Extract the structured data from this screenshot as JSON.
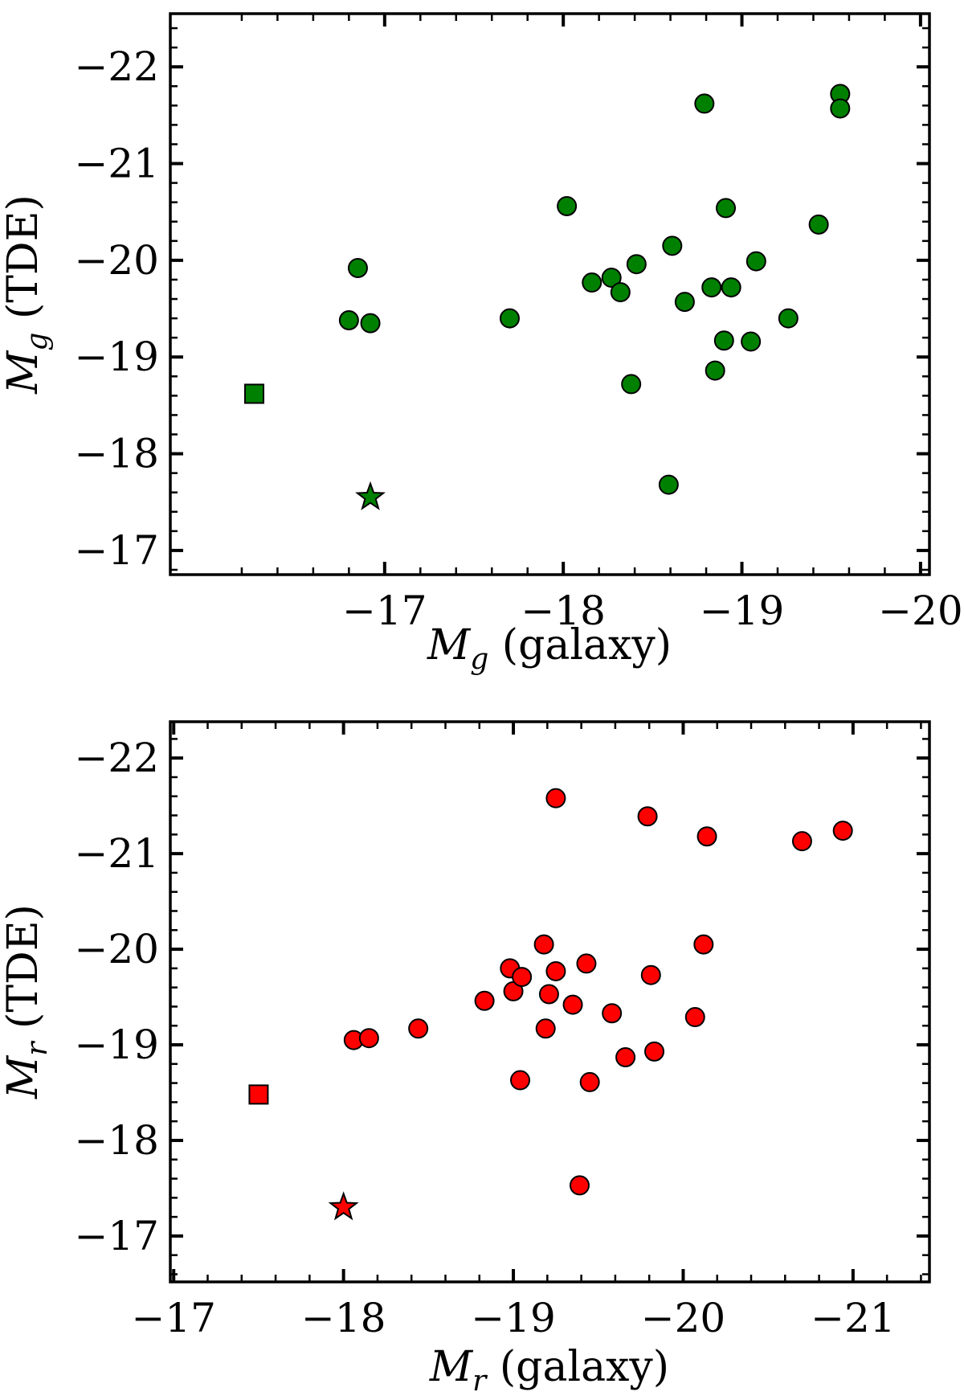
{
  "chart_data": [
    {
      "type": "scatter",
      "id": "top",
      "title": "",
      "xlabel_var": "M",
      "xlabel_sub": "g",
      "xlabel_rest": " (galaxy)",
      "ylabel_var": "M",
      "ylabel_sub": "g",
      "ylabel_rest": " (TDE)",
      "xlim": [
        -15.8,
        -20.05
      ],
      "ylim": [
        -16.75,
        -22.55
      ],
      "xticks": [
        -17,
        -18,
        -19,
        -20
      ],
      "xtick_labels": [
        "−17",
        "−18",
        "−19",
        "−20"
      ],
      "yticks": [
        -17,
        -18,
        -19,
        -20,
        -21,
        -22
      ],
      "ytick_labels": [
        "−17",
        "−18",
        "−19",
        "−20",
        "−21",
        "−22"
      ],
      "color": "#008000",
      "series": [
        {
          "name": "circles",
          "marker": "circle",
          "points": [
            [
              -16.8,
              -19.38
            ],
            [
              -16.92,
              -19.35
            ],
            [
              -16.85,
              -19.92
            ],
            [
              -17.7,
              -19.4
            ],
            [
              -18.02,
              -20.56
            ],
            [
              -18.16,
              -19.77
            ],
            [
              -18.27,
              -19.82
            ],
            [
              -18.32,
              -19.67
            ],
            [
              -18.38,
              -18.72
            ],
            [
              -18.41,
              -19.96
            ],
            [
              -18.59,
              -17.68
            ],
            [
              -18.61,
              -20.15
            ],
            [
              -18.68,
              -19.57
            ],
            [
              -18.79,
              -21.62
            ],
            [
              -18.83,
              -19.72
            ],
            [
              -18.85,
              -18.86
            ],
            [
              -18.9,
              -19.17
            ],
            [
              -18.91,
              -20.54
            ],
            [
              -18.94,
              -19.72
            ],
            [
              -19.05,
              -19.16
            ],
            [
              -19.08,
              -19.99
            ],
            [
              -19.26,
              -19.4
            ],
            [
              -19.43,
              -20.37
            ],
            [
              -19.55,
              -21.72
            ],
            [
              -19.55,
              -21.57
            ]
          ]
        },
        {
          "name": "square",
          "marker": "square",
          "points": [
            [
              -16.27,
              -18.62
            ]
          ]
        },
        {
          "name": "star",
          "marker": "star",
          "points": [
            [
              -16.92,
              -17.55
            ]
          ]
        }
      ]
    },
    {
      "type": "scatter",
      "id": "bottom",
      "title": "",
      "xlabel_var": "M",
      "xlabel_sub": "r",
      "xlabel_rest": " (galaxy)",
      "ylabel_var": "M",
      "ylabel_sub": "r",
      "ylabel_rest": " (TDE)",
      "xlim": [
        -16.98,
        -21.45
      ],
      "ylim": [
        -16.52,
        -22.38
      ],
      "xticks": [
        -17,
        -18,
        -19,
        -20,
        -21
      ],
      "xtick_labels": [
        "−17",
        "−18",
        "−19",
        "−20",
        "−21"
      ],
      "yticks": [
        -17,
        -18,
        -19,
        -20,
        -21,
        -22
      ],
      "ytick_labels": [
        "−17",
        "−18",
        "−19",
        "−20",
        "−21",
        "−22"
      ],
      "color": "#ff0000",
      "series": [
        {
          "name": "circles",
          "marker": "circle",
          "points": [
            [
              -18.06,
              -19.05
            ],
            [
              -18.15,
              -19.07
            ],
            [
              -18.44,
              -19.17
            ],
            [
              -18.83,
              -19.46
            ],
            [
              -18.98,
              -19.8
            ],
            [
              -19.0,
              -19.56
            ],
            [
              -19.05,
              -19.71
            ],
            [
              -19.04,
              -18.63
            ],
            [
              -19.18,
              -20.05
            ],
            [
              -19.19,
              -19.17
            ],
            [
              -19.21,
              -19.53
            ],
            [
              -19.25,
              -19.77
            ],
            [
              -19.25,
              -21.58
            ],
            [
              -19.35,
              -19.42
            ],
            [
              -19.39,
              -17.53
            ],
            [
              -19.43,
              -19.85
            ],
            [
              -19.45,
              -18.61
            ],
            [
              -19.58,
              -19.33
            ],
            [
              -19.66,
              -18.87
            ],
            [
              -19.79,
              -21.39
            ],
            [
              -19.81,
              -19.73
            ],
            [
              -19.83,
              -18.93
            ],
            [
              -20.07,
              -19.29
            ],
            [
              -20.12,
              -20.05
            ],
            [
              -20.14,
              -21.18
            ],
            [
              -20.7,
              -21.13
            ],
            [
              -20.94,
              -21.24
            ]
          ]
        },
        {
          "name": "square",
          "marker": "square",
          "points": [
            [
              -17.5,
              -18.48
            ]
          ]
        },
        {
          "name": "star",
          "marker": "star",
          "points": [
            [
              -18.0,
              -17.3
            ]
          ]
        }
      ]
    }
  ]
}
